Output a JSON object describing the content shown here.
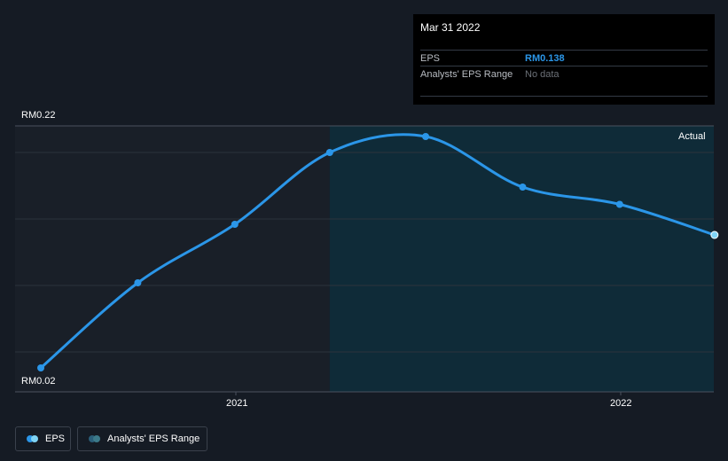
{
  "tooltip": {
    "date": "Mar 31 2022",
    "eps_label": "EPS",
    "eps_value": "RM0.138",
    "range_label": "Analysts' EPS Range",
    "range_value": "No data"
  },
  "region_label": "Actual",
  "legend": [
    {
      "label": "EPS",
      "colors": [
        "#2b96e8",
        "#7fd4f5"
      ]
    },
    {
      "label": "Analysts' EPS Range",
      "colors": [
        "#2b5f7a",
        "#3c7a8a"
      ]
    }
  ],
  "colors": {
    "background": "#151b24",
    "line": "#2b96e8",
    "forecast_region": "#0f2b38",
    "past_region": "#191f28"
  },
  "chart_data": {
    "type": "line",
    "title": "",
    "xlabel": "",
    "ylabel": "",
    "y_tick_labels": [
      "RM0.22",
      "RM0.02"
    ],
    "x_tick_labels": [
      "2021",
      "2022"
    ],
    "ylim": [
      0.02,
      0.22
    ],
    "grid": true,
    "actual_region_start": "2021-03-31",
    "series": [
      {
        "name": "EPS",
        "points": [
          {
            "x": "2020-06-30",
            "y": 0.038
          },
          {
            "x": "2020-09-30",
            "y": 0.102
          },
          {
            "x": "2020-12-31",
            "y": 0.146
          },
          {
            "x": "2021-03-31",
            "y": 0.2
          },
          {
            "x": "2021-06-30",
            "y": 0.212
          },
          {
            "x": "2021-09-30",
            "y": 0.174
          },
          {
            "x": "2021-12-31",
            "y": 0.161
          },
          {
            "x": "2022-03-31",
            "y": 0.138
          }
        ]
      }
    ]
  }
}
